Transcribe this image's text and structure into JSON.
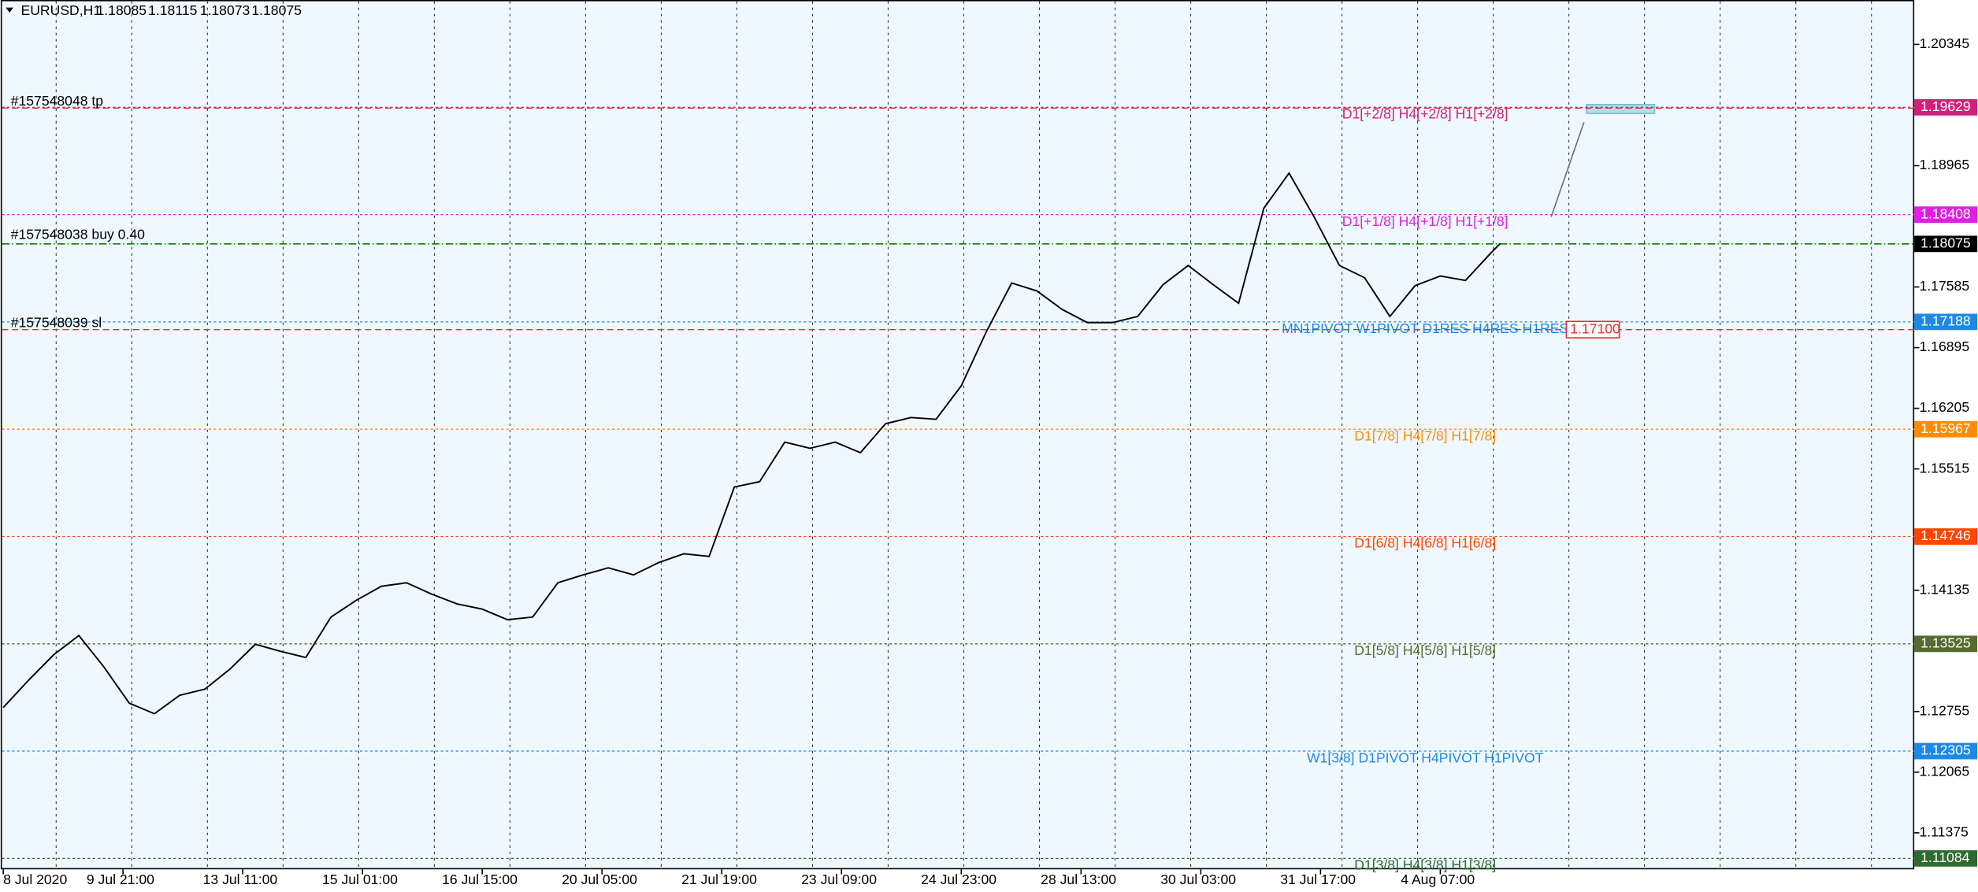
{
  "header": {
    "symbol": "EURUSD,H1",
    "ohlc": [
      1.18085,
      1.18115,
      1.18073,
      1.18075
    ]
  },
  "chart_data": {
    "type": "line",
    "x": [
      0,
      8,
      16,
      24,
      32,
      40,
      48,
      56,
      64,
      72,
      80,
      88,
      96,
      104,
      112,
      120,
      128,
      136,
      144,
      152,
      160,
      168,
      176,
      184,
      192,
      200,
      208,
      216,
      224,
      232,
      240,
      248,
      256,
      264,
      272,
      280,
      288,
      296,
      304,
      312,
      320,
      328,
      336,
      344,
      352,
      360,
      368,
      376,
      384,
      392,
      400,
      408,
      416,
      424,
      432,
      440,
      448,
      456,
      464,
      472,
      475
    ],
    "series": [
      {
        "color": "#000000",
        "values": [
          1.128,
          1.1311,
          1.134,
          1.1362,
          1.1326,
          1.1285,
          1.1273,
          1.1294,
          1.1301,
          1.1324,
          1.1352,
          1.1344,
          1.1337,
          1.1383,
          1.1402,
          1.1418,
          1.1422,
          1.1409,
          1.1398,
          1.1392,
          1.138,
          1.1383,
          1.1422,
          1.1431,
          1.1439,
          1.1431,
          1.1445,
          1.1455,
          1.1452,
          1.1531,
          1.1537,
          1.1582,
          1.1575,
          1.1582,
          1.157,
          1.1603,
          1.161,
          1.1608,
          1.1646,
          1.1708,
          1.1763,
          1.1754,
          1.1733,
          1.1718,
          1.1718,
          1.1725,
          1.1761,
          1.1783,
          1.1761,
          1.174,
          1.1848,
          1.1888,
          1.1838,
          1.1783,
          1.1769,
          1.1725,
          1.176,
          1.1771,
          1.1766,
          1.1797,
          1.1808
        ]
      }
    ],
    "xlim": [
      -0.8,
      606.4
    ],
    "xticks": [
      {
        "value": 0,
        "label": "8 Jul 2020"
      },
      {
        "value": 38,
        "label": "9 Jul 21:00"
      },
      {
        "value": 76,
        "label": "13 Jul 11:00"
      },
      {
        "value": 114,
        "label": "15 Jul 01:00"
      },
      {
        "value": 152,
        "label": "16 Jul 15:00"
      },
      {
        "value": 190,
        "label": "20 Jul 05:00"
      },
      {
        "value": 228,
        "label": "21 Jul 19:00"
      },
      {
        "value": 266,
        "label": "23 Jul 09:00"
      },
      {
        "value": 304,
        "label": "24 Jul 23:00"
      },
      {
        "value": 342,
        "label": "28 Jul 13:00"
      },
      {
        "value": 380,
        "label": "30 Jul 03:00"
      },
      {
        "value": 418,
        "label": "31 Jul 17:00"
      },
      {
        "value": 456,
        "label": "4 Aug 07:00"
      }
    ],
    "ylim": [
      1.1096,
      1.2085
    ],
    "yticks": [
      1.20345,
      1.18965,
      1.17585,
      1.16895,
      1.16205,
      1.15515,
      1.14135,
      1.12755,
      1.12065,
      1.11375
    ],
    "levels": [
      {
        "label": "D1[+2/8] H4[+2/8] H1[+2/8]",
        "value": 1.19629,
        "color": "#d0207a"
      },
      {
        "label": "D1[+1/8] H4[+1/8] H1[+1/8]",
        "value": 1.18408,
        "color": "#e020e0"
      },
      {
        "label": "MN1PIVOT W1PIVOT D1RES H4RES H1RES",
        "value": 1.17188,
        "color": "#1e88e5"
      },
      {
        "label": "D1[7/8] H4[7/8] H1[7/8]",
        "value": 1.15967,
        "color": "#ff8c00"
      },
      {
        "label": "D1[6/8] H4[6/8] H1[6/8]",
        "value": 1.14746,
        "color": "#ff4500"
      },
      {
        "label": "D1[5/8] H4[5/8] H1[5/8]",
        "value": 1.13525,
        "color": "#556b2f"
      },
      {
        "label": "W1[3/8] D1PIVOT H4PIVOT H1PIVOT",
        "value": 1.12305,
        "color": "#1e88e5"
      },
      {
        "label": "D1[3/8] H4[3/8] H1[3/8]",
        "value": 1.11084,
        "color": "#2e6b2e"
      }
    ],
    "orders": [
      {
        "label": "#157548048 tp",
        "value": 1.1962
      },
      {
        "label": "#157548038 buy 0.40",
        "value": 1.181
      },
      {
        "label": "#157548039 sl",
        "value": 1.171,
        "value_label": "1.17100"
      }
    ]
  }
}
